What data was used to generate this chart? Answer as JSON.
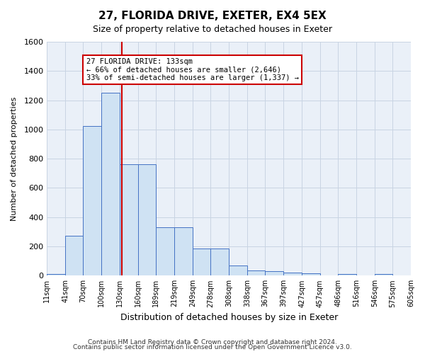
{
  "title1": "27, FLORIDA DRIVE, EXETER, EX4 5EX",
  "title2": "Size of property relative to detached houses in Exeter",
  "xlabel": "Distribution of detached houses by size in Exeter",
  "ylabel": "Number of detached properties",
  "footer1": "Contains HM Land Registry data © Crown copyright and database right 2024.",
  "footer2": "Contains public sector information licensed under the Open Government Licence v3.0.",
  "annotation_line1": "27 FLORIDA DRIVE: 133sqm",
  "annotation_line2": "← 66% of detached houses are smaller (2,646)",
  "annotation_line3": "33% of semi-detached houses are larger (1,337) →",
  "property_size": 133,
  "bin_edges": [
    11,
    41,
    70,
    100,
    130,
    160,
    189,
    219,
    249,
    278,
    308,
    338,
    367,
    397,
    427,
    457,
    486,
    516,
    546,
    575,
    605
  ],
  "bar_heights": [
    10,
    275,
    1025,
    1250,
    760,
    760,
    330,
    330,
    185,
    185,
    70,
    35,
    30,
    20,
    15,
    0,
    10,
    0,
    10,
    0
  ],
  "bar_color": "#cfe2f3",
  "bar_edge_color": "#4472c4",
  "vline_color": "#cc0000",
  "vline_x": 133,
  "annotation_box_color": "#cc0000",
  "annotation_fill": "white",
  "ylim": [
    0,
    1600
  ],
  "yticks": [
    0,
    200,
    400,
    600,
    800,
    1000,
    1200,
    1400,
    1600
  ],
  "grid_color": "#c8d4e3",
  "bg_color": "#eaf0f8"
}
